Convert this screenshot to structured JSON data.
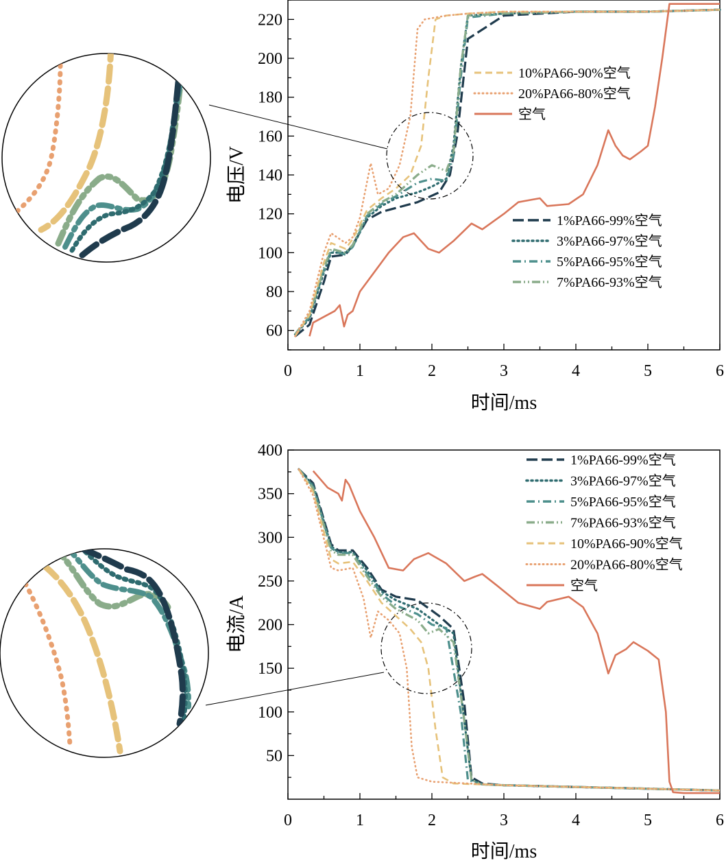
{
  "colors": {
    "c1": "#1f3b4d",
    "c3": "#2e6b6f",
    "c5": "#4d8f8c",
    "c7": "#8aac8a",
    "c10": "#e6c27a",
    "c20": "#e8a070",
    "air": "#d9765a"
  },
  "chart_data": [
    {
      "type": "line",
      "xlabel": "时间/ms",
      "ylabel": "电压/V",
      "xlim": [
        0,
        6
      ],
      "ylim": [
        50,
        230
      ],
      "xticks": [
        "0",
        "1",
        "2",
        "3",
        "4",
        "5",
        "6"
      ],
      "yticks": [
        "60",
        "80",
        "100",
        "120",
        "140",
        "160",
        "180",
        "200",
        "220"
      ],
      "legend_groups": [
        [
          "10%PA66-90%空气",
          "20%PA66-80%空气",
          "空气"
        ],
        [
          "1%PA66-99%空气",
          "3%PA66-97%空气",
          "5%PA66-95%空气",
          "7%PA66-93%空气"
        ]
      ],
      "inset": "zoom circle around t≈2 ms, V≈150 V",
      "series": [
        {
          "name": "1%PA66-99%空气",
          "style": "dash-long",
          "color": "#1f3b4d",
          "x": [
            0.1,
            0.3,
            0.5,
            0.6,
            0.8,
            0.9,
            1.1,
            1.3,
            1.5,
            1.8,
            2.1,
            2.25,
            2.35,
            2.5,
            3.0,
            4.0,
            5.0,
            6.0
          ],
          "y": [
            57,
            63,
            85,
            98,
            99,
            104,
            117,
            121,
            123,
            126,
            131,
            140,
            160,
            210,
            222,
            224,
            224,
            225
          ]
        },
        {
          "name": "3%PA66-97%空气",
          "style": "dot-dense",
          "color": "#2e6b6f",
          "x": [
            0.1,
            0.3,
            0.5,
            0.6,
            0.8,
            0.9,
            1.1,
            1.3,
            1.5,
            1.8,
            2.0,
            2.2,
            2.3,
            2.4,
            2.5,
            3.0,
            4.0,
            5.0,
            6.0
          ],
          "y": [
            58,
            66,
            90,
            100,
            100,
            103,
            118,
            124,
            128,
            131,
            134,
            138,
            155,
            195,
            222,
            223,
            224,
            224,
            225
          ]
        },
        {
          "name": "5%PA66-95%空气",
          "style": "dash-dot",
          "color": "#4d8f8c",
          "x": [
            0.1,
            0.3,
            0.5,
            0.6,
            0.8,
            0.9,
            1.1,
            1.3,
            1.5,
            1.8,
            2.0,
            2.2,
            2.3,
            2.4,
            2.5,
            3.0,
            4.0,
            5.0,
            6.0
          ],
          "y": [
            58,
            67,
            91,
            101,
            99,
            103,
            119,
            125,
            129,
            136,
            138,
            137,
            150,
            190,
            221,
            223,
            224,
            224,
            225
          ]
        },
        {
          "name": "7%PA66-93%空气",
          "style": "dash-dot-dot",
          "color": "#8aac8a",
          "x": [
            0.1,
            0.3,
            0.5,
            0.6,
            0.8,
            0.9,
            1.1,
            1.3,
            1.5,
            1.8,
            2.0,
            2.2,
            2.3,
            2.4,
            2.5,
            3.0,
            4.0,
            5.0,
            6.0
          ],
          "y": [
            58,
            68,
            92,
            102,
            100,
            104,
            120,
            126,
            130,
            140,
            145,
            142,
            152,
            195,
            222,
            223,
            224,
            224,
            225
          ]
        },
        {
          "name": "10%PA66-90%空气",
          "style": "dash",
          "color": "#e6c27a",
          "x": [
            0.1,
            0.3,
            0.5,
            0.6,
            0.8,
            0.9,
            1.1,
            1.3,
            1.5,
            1.7,
            1.85,
            1.95,
            2.05,
            2.2,
            2.5,
            3.0,
            4.0,
            5.0,
            6.0
          ],
          "y": [
            57,
            68,
            95,
            105,
            102,
            107,
            122,
            128,
            133,
            140,
            155,
            190,
            220,
            222,
            223,
            224,
            224,
            224,
            225
          ]
        },
        {
          "name": "20%PA66-80%空气",
          "style": "dot",
          "color": "#e8a070",
          "x": [
            0.1,
            0.3,
            0.5,
            0.6,
            0.8,
            0.9,
            1.0,
            1.15,
            1.25,
            1.4,
            1.55,
            1.7,
            1.8,
            1.9,
            2.2,
            2.5,
            3.0,
            4.0,
            5.0,
            6.0
          ],
          "y": [
            57,
            70,
            100,
            110,
            105,
            108,
            118,
            146,
            130,
            133,
            145,
            170,
            215,
            220,
            222,
            223,
            224,
            224,
            224,
            225
          ]
        },
        {
          "name": "空气",
          "style": "solid",
          "color": "#d9765a",
          "x": [
            0.3,
            0.35,
            0.5,
            0.65,
            0.72,
            0.78,
            0.83,
            0.9,
            1.0,
            1.2,
            1.4,
            1.6,
            1.75,
            1.95,
            2.1,
            2.3,
            2.55,
            2.7,
            3.0,
            3.2,
            3.5,
            3.6,
            3.9,
            4.1,
            4.3,
            4.45,
            4.55,
            4.65,
            4.75,
            4.9,
            5.0,
            5.1,
            5.2,
            5.3,
            5.4,
            6.0
          ],
          "y": [
            57,
            64,
            67,
            70,
            73,
            62,
            68,
            70,
            80,
            90,
            100,
            108,
            110,
            102,
            100,
            106,
            115,
            112,
            120,
            126,
            128,
            124,
            125,
            130,
            145,
            163,
            155,
            150,
            148,
            152,
            155,
            175,
            200,
            228,
            228,
            228
          ]
        }
      ]
    },
    {
      "type": "line",
      "xlabel": "时间/ms",
      "ylabel": "电流/A",
      "xlim": [
        0,
        6
      ],
      "ylim": [
        0,
        400
      ],
      "xticks": [
        "0",
        "1",
        "2",
        "3",
        "4",
        "5",
        "6"
      ],
      "yticks": [
        "50",
        "100",
        "150",
        "200",
        "250",
        "300",
        "350",
        "400"
      ],
      "legend": [
        "1%PA66-99%空气",
        "3%PA66-97%空气",
        "5%PA66-95%空气",
        "7%PA66-93%空气",
        "10%PA66-90%空气",
        "20%PA66-80%空气",
        "空气"
      ],
      "inset": "zoom circle around t≈2 ms, I≈170 A",
      "series": [
        {
          "name": "1%PA66-99%空气",
          "style": "dash-long",
          "color": "#1f3b4d",
          "x": [
            0.15,
            0.35,
            0.6,
            0.7,
            0.9,
            1.1,
            1.3,
            1.5,
            1.8,
            2.1,
            2.3,
            2.45,
            2.55,
            2.7,
            3.0,
            4.0,
            5.0,
            6.0
          ],
          "y": [
            378,
            362,
            292,
            285,
            285,
            265,
            240,
            232,
            228,
            210,
            195,
            110,
            25,
            18,
            16,
            14,
            12,
            10
          ]
        },
        {
          "name": "3%PA66-97%空气",
          "style": "dot-dense",
          "color": "#2e6b6f",
          "x": [
            0.15,
            0.35,
            0.6,
            0.7,
            0.9,
            1.1,
            1.3,
            1.5,
            1.8,
            2.1,
            2.3,
            2.45,
            2.55,
            2.7,
            3.0,
            4.0,
            5.0,
            6.0
          ],
          "y": [
            378,
            360,
            290,
            283,
            283,
            262,
            238,
            228,
            218,
            200,
            190,
            90,
            22,
            17,
            16,
            14,
            12,
            10
          ]
        },
        {
          "name": "5%PA66-95%空气",
          "style": "dash-dot",
          "color": "#4d8f8c",
          "x": [
            0.15,
            0.35,
            0.6,
            0.7,
            0.9,
            1.1,
            1.3,
            1.5,
            1.8,
            2.0,
            2.2,
            2.4,
            2.5,
            2.7,
            3.0,
            4.0,
            5.0,
            6.0
          ],
          "y": [
            378,
            358,
            288,
            282,
            282,
            258,
            235,
            222,
            212,
            200,
            196,
            100,
            22,
            17,
            16,
            14,
            12,
            10
          ]
        },
        {
          "name": "7%PA66-93%空气",
          "style": "dash-dot-dot",
          "color": "#8aac8a",
          "x": [
            0.15,
            0.35,
            0.6,
            0.7,
            0.9,
            1.1,
            1.3,
            1.5,
            1.8,
            1.95,
            2.1,
            2.3,
            2.45,
            2.55,
            2.7,
            3.0,
            4.0,
            5.0,
            6.0
          ],
          "y": [
            378,
            356,
            285,
            280,
            280,
            255,
            232,
            218,
            205,
            190,
            195,
            180,
            90,
            22,
            17,
            16,
            14,
            12,
            10
          ]
        },
        {
          "name": "10%PA66-90%空气",
          "style": "dash",
          "color": "#e6c27a",
          "x": [
            0.15,
            0.35,
            0.6,
            0.7,
            0.9,
            1.1,
            1.3,
            1.5,
            1.7,
            1.85,
            1.95,
            2.05,
            2.15,
            2.3,
            3.0,
            4.0,
            5.0,
            6.0
          ],
          "y": [
            378,
            352,
            275,
            270,
            272,
            250,
            225,
            210,
            195,
            180,
            150,
            80,
            25,
            18,
            16,
            14,
            12,
            10
          ]
        },
        {
          "name": "20%PA66-80%空气",
          "style": "dot",
          "color": "#e8a070",
          "x": [
            0.15,
            0.35,
            0.6,
            0.7,
            0.9,
            1.05,
            1.15,
            1.25,
            1.4,
            1.55,
            1.65,
            1.72,
            1.8,
            2.0,
            3.0,
            4.0,
            5.0,
            6.0
          ],
          "y": [
            378,
            348,
            265,
            262,
            265,
            230,
            185,
            215,
            205,
            190,
            150,
            60,
            25,
            20,
            16,
            14,
            12,
            10
          ]
        },
        {
          "name": "空气",
          "style": "solid",
          "color": "#d9765a",
          "x": [
            0.35,
            0.55,
            0.7,
            0.75,
            0.8,
            0.85,
            1.0,
            1.2,
            1.4,
            1.6,
            1.75,
            1.95,
            2.2,
            2.45,
            2.6,
            2.7,
            2.9,
            3.2,
            3.5,
            3.6,
            3.9,
            4.1,
            4.3,
            4.45,
            4.55,
            4.7,
            4.8,
            5.0,
            5.15,
            5.25,
            5.3,
            5.35,
            5.5,
            6.0
          ],
          "y": [
            376,
            357,
            350,
            342,
            366,
            360,
            330,
            300,
            265,
            262,
            275,
            282,
            270,
            250,
            255,
            258,
            245,
            225,
            218,
            226,
            232,
            220,
            190,
            144,
            165,
            172,
            180,
            170,
            160,
            100,
            20,
            8,
            7,
            7
          ]
        }
      ]
    }
  ]
}
